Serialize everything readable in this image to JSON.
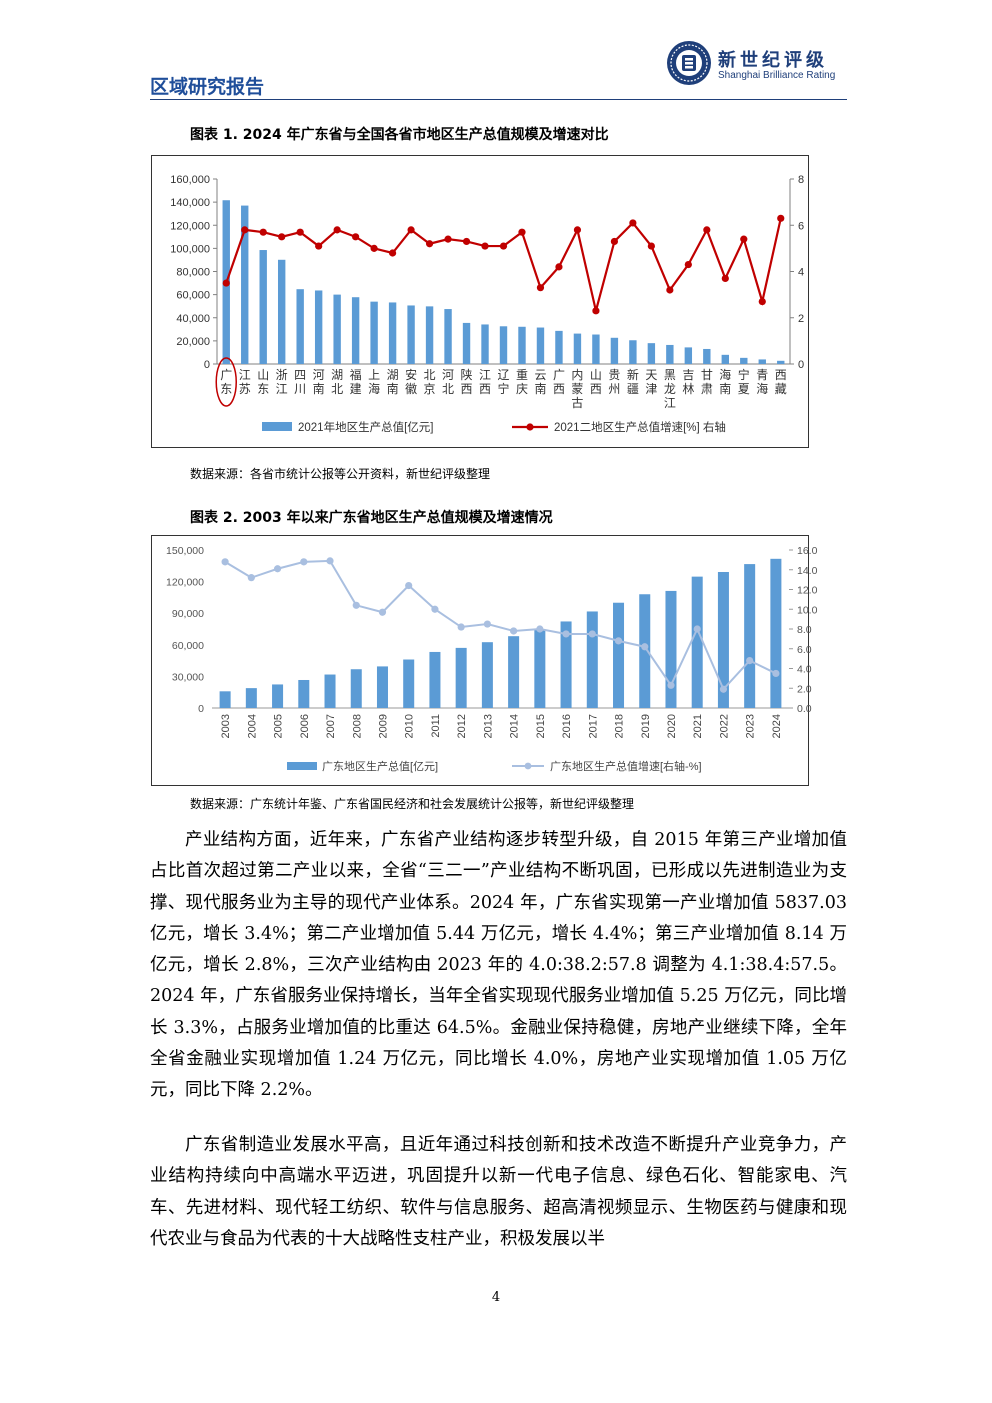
{
  "header": {
    "section_title": "区域研究报告",
    "brand_cn": "新世纪评级",
    "brand_en": "Shanghai Brilliance Rating"
  },
  "figure1": {
    "title": "图表 1.  2024 年广东省与全国各省市地区生产总值规模及增速对比",
    "source": "数据来源：各省市统计公报等公开资料，新世纪评级整理",
    "chart_data": {
      "type": "bar",
      "categories": [
        "广东",
        "江苏",
        "山东",
        "浙江",
        "四川",
        "河南",
        "湖北",
        "福建",
        "上海",
        "湖南",
        "安徽",
        "北京",
        "河北",
        "陕西",
        "江西",
        "辽宁",
        "重庆",
        "云南",
        "广西",
        "内蒙古",
        "山西",
        "贵州",
        "新疆",
        "天津",
        "黑龙江",
        "吉林",
        "甘肃",
        "海南",
        "宁夏",
        "青海",
        "西藏"
      ],
      "series": [
        {
          "name": "2021年地区生产总值[亿元]",
          "type": "bar",
          "axis": "left",
          "values": [
            141634,
            137008,
            98566,
            90131,
            64697,
            63590,
            60013,
            57761,
            53927,
            53231,
            50625,
            49843,
            47527,
            35538,
            34203,
            32613,
            32193,
            31534,
            28649,
            26302,
            25494,
            22667,
            20534,
            18024,
            16476,
            14362,
            13003,
            7935,
            5315,
            3951,
            2765
          ]
        },
        {
          "name": "2021二地区生产总值增速[%] 右轴",
          "type": "line",
          "axis": "right",
          "values": [
            3.5,
            5.8,
            5.7,
            5.5,
            5.7,
            5.1,
            5.8,
            5.5,
            5.0,
            4.8,
            5.8,
            5.2,
            5.4,
            5.3,
            5.1,
            5.1,
            5.7,
            3.3,
            4.2,
            5.8,
            2.3,
            5.3,
            6.1,
            5.1,
            3.2,
            4.3,
            5.8,
            3.7,
            5.4,
            2.7,
            6.3
          ]
        }
      ],
      "ylim_left": [
        0,
        160000
      ],
      "yticks_left": [
        "0",
        "20,000",
        "40,000",
        "60,000",
        "80,000",
        "100,000",
        "120,000",
        "140,000",
        "160,000"
      ],
      "ylim_right": [
        0,
        8
      ],
      "yticks_right": [
        "0",
        "2",
        "4",
        "6",
        "8"
      ],
      "colors": {
        "bar": "#5b9bd5",
        "line": "#c00000",
        "highlight": "#c00000"
      },
      "highlight_category": "广东",
      "legend_position": "bottom"
    }
  },
  "figure2": {
    "title": "图表 2.  2003 年以来广东省地区生产总值规模及增速情况",
    "source": "数据来源：广东统计年鉴、广东省国民经济和社会发展统计公报等，新世纪评级整理",
    "chart_data": {
      "type": "bar",
      "categories": [
        "2003",
        "2004",
        "2005",
        "2006",
        "2007",
        "2008",
        "2009",
        "2010",
        "2011",
        "2012",
        "2013",
        "2014",
        "2015",
        "2016",
        "2017",
        "2018",
        "2019",
        "2020",
        "2021",
        "2022",
        "2023",
        "2024"
      ],
      "series": [
        {
          "name": "广东地区生产总值[亿元]",
          "type": "bar",
          "axis": "left",
          "values": [
            15845,
            18865,
            22367,
            26587,
            31777,
            36797,
            39483,
            46036,
            53210,
            57068,
            62475,
            68173,
            74732,
            82163,
            91649,
            99945,
            107987,
            111152,
            124720,
            129119,
            136618,
            141634
          ]
        },
        {
          "name": "广东地区生产总值增速[右轴-%]",
          "type": "line",
          "axis": "right",
          "values": [
            14.8,
            13.2,
            14.1,
            14.8,
            14.9,
            10.4,
            9.7,
            12.4,
            10.0,
            8.2,
            8.5,
            7.8,
            8.0,
            7.5,
            7.5,
            6.8,
            6.2,
            2.3,
            8.0,
            1.9,
            4.8,
            3.5
          ]
        }
      ],
      "ylim_left": [
        0,
        150000
      ],
      "yticks_left": [
        "0",
        "30,000",
        "60,000",
        "90,000",
        "120,000",
        "150,000"
      ],
      "ylim_right": [
        0,
        16
      ],
      "yticks_right": [
        "0.0",
        "2.0",
        "4.0",
        "6.0",
        "8.0",
        "10.0",
        "12.0",
        "14.0",
        "16.0"
      ],
      "colors": {
        "bar": "#5b9bd5",
        "line": "#a9bfe0"
      },
      "legend_position": "bottom"
    }
  },
  "paragraphs": [
    "产业结构方面，近年来，广东省产业结构逐步转型升级，自 2015 年第三产业增加值占比首次超过第二产业以来，全省“三二一”产业结构不断巩固，已形成以先进制造业为支撑、现代服务业为主导的现代产业体系。2024 年，广东省实现第一产业增加值 5837.03 亿元，增长 3.4%；第二产业增加值 5.44 万亿元，增长 4.4%；第三产业增加值 8.14 万亿元，增长 2.8%，三次产业结构由 2023 年的 4.0:38.2:57.8 调整为 4.1:38.4:57.5。2024 年，广东省服务业保持增长，当年全省实现现代服务业增加值 5.25 万亿元，同比增长 3.3%，占服务业增加值的比重达 64.5%。金融业保持稳健，房地产业继续下降，全年全省金融业实现增加值 1.24 万亿元，同比增长 4.0%，房地产业实现增加值 1.05 万亿元，同比下降 2.2%。",
    "广东省制造业发展水平高，且近年通过科技创新和技术改造不断提升产业竞争力，产业结构持续向中高端水平迈进，巩固提升以新一代电子信息、绿色石化、智能家电、汽车、先进材料、现代轻工纺织、软件与信息服务、超高清视频显示、生物医药与健康和现代农业与食品为代表的十大战略性支柱产业，积极发展以半"
  ],
  "page_number": "4"
}
